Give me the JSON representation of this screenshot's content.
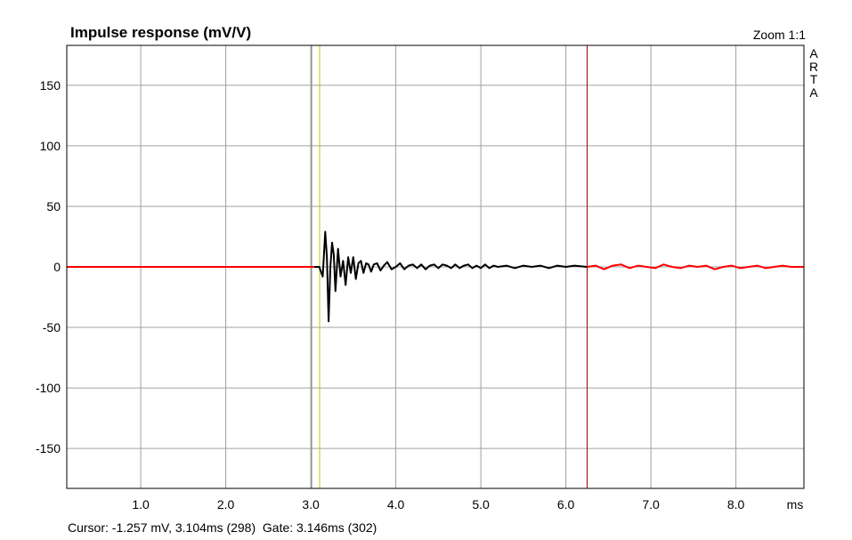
{
  "chart_data": {
    "type": "line",
    "title": "Impulse response (mV/V)",
    "xlabel": "ms",
    "ylabel": "",
    "xlim": [
      0.13,
      8.8
    ],
    "ylim": [
      -183,
      183
    ],
    "xticks": [
      1.0,
      2.0,
      3.0,
      4.0,
      5.0,
      6.0,
      7.0,
      8.0
    ],
    "xtick_labels": [
      "1.0",
      "2.0",
      "3.0",
      "4.0",
      "5.0",
      "6.0",
      "7.0",
      "8.0"
    ],
    "yticks": [
      150,
      100,
      50,
      0,
      -50,
      -100,
      -150
    ],
    "ytick_labels": [
      "150",
      "100",
      "50",
      "0",
      "-50",
      "-100",
      "-150"
    ],
    "grid": true,
    "gate_start_ms": 3.104,
    "gate_end_ms": 6.25,
    "series": [
      {
        "color": "#ff0000",
        "x": [
          0.13,
          3.04
        ],
        "y": [
          0,
          0
        ]
      },
      {
        "color": "#000000",
        "x": [
          3.04,
          3.1,
          3.14,
          3.17,
          3.19,
          3.21,
          3.23,
          3.25,
          3.27,
          3.29,
          3.32,
          3.35,
          3.38,
          3.41,
          3.44,
          3.47,
          3.5,
          3.53,
          3.56,
          3.59,
          3.62,
          3.65,
          3.68,
          3.71,
          3.74,
          3.78,
          3.82,
          3.86,
          3.9,
          3.95,
          4.0,
          4.05,
          4.1,
          4.15,
          4.2,
          4.25,
          4.3,
          4.35,
          4.4,
          4.45,
          4.5,
          4.55,
          4.6,
          4.65,
          4.7,
          4.75,
          4.8,
          4.85,
          4.9,
          4.95,
          5.0,
          5.05,
          5.1,
          5.15,
          5.2,
          5.3,
          5.4,
          5.5,
          5.6,
          5.7,
          5.8,
          5.9,
          6.0,
          6.1,
          6.25
        ],
        "y": [
          0,
          0,
          -8,
          29,
          8,
          -45,
          0,
          20,
          10,
          -20,
          15,
          -8,
          5,
          -15,
          8,
          -5,
          8,
          -10,
          3,
          5,
          -5,
          3,
          2,
          -4,
          2,
          3,
          -3,
          1,
          4,
          -2,
          0,
          3,
          -2,
          1,
          2,
          -1,
          2,
          -2,
          1,
          2,
          -1,
          2,
          1,
          -1,
          2,
          -1,
          1,
          2,
          -1,
          1,
          -1,
          2,
          -1,
          1,
          0,
          1,
          -1,
          1,
          0,
          1,
          -1,
          1,
          0,
          1,
          0
        ]
      },
      {
        "color": "#ff0000",
        "x": [
          6.25,
          6.35,
          6.45,
          6.55,
          6.65,
          6.75,
          6.85,
          6.95,
          7.05,
          7.15,
          7.25,
          7.35,
          7.45,
          7.55,
          7.65,
          7.75,
          7.85,
          7.95,
          8.05,
          8.15,
          8.25,
          8.35,
          8.45,
          8.55,
          8.65,
          8.8
        ],
        "y": [
          0,
          1,
          -2,
          1,
          2,
          -1,
          1,
          0,
          -1,
          2,
          0,
          -1,
          1,
          0,
          1,
          -2,
          0,
          1,
          -1,
          0,
          1,
          -1,
          0,
          1,
          0,
          0
        ]
      }
    ]
  },
  "header": {
    "zoom": "Zoom 1:1"
  },
  "brand": [
    "A",
    "R",
    "T",
    "A"
  ],
  "status": {
    "text": "Cursor: -1.257 mV, 3.104ms (298)  Gate: 3.146ms (302)"
  },
  "colors": {
    "grid": "#a0a0a0",
    "axis": "#000000",
    "cursor_line": "#c8c800",
    "gate_line": "#a00000",
    "pre_gate_line": "#808080"
  }
}
